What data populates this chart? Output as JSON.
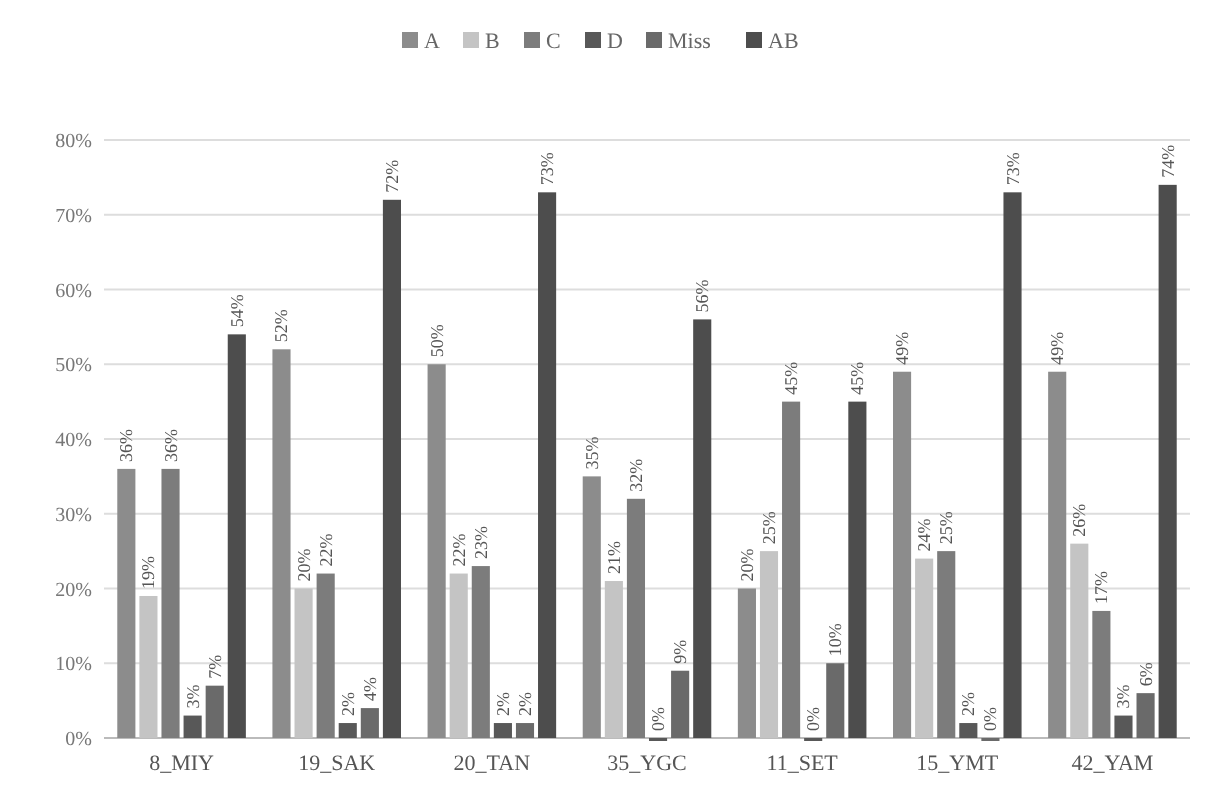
{
  "chart_data": {
    "type": "bar",
    "categories": [
      "8_MIY",
      "19_SAK",
      "20_TAN",
      "35_YGC",
      "11_SET",
      "15_YMT",
      "42_YAM"
    ],
    "series": [
      {
        "name": "A",
        "color": "#8c8c8c",
        "values": [
          36,
          52,
          50,
          35,
          20,
          49,
          49
        ],
        "value_labels": [
          "36%",
          "52%",
          "50%",
          "35%",
          "20%",
          "49%",
          "49%"
        ]
      },
      {
        "name": "B",
        "color": "#c4c4c4",
        "values": [
          19,
          20,
          22,
          21,
          25,
          24,
          26
        ],
        "value_labels": [
          "19%",
          "20%",
          "22%",
          "21%",
          "25%",
          "24%",
          "26%"
        ]
      },
      {
        "name": "C",
        "color": "#7c7c7c",
        "values": [
          36,
          22,
          23,
          32,
          45,
          25,
          17
        ],
        "value_labels": [
          "36%",
          "22%",
          "23%",
          "32%",
          "45%",
          "25%",
          "17%"
        ]
      },
      {
        "name": "D",
        "color": "#585858",
        "values": [
          3,
          2,
          2,
          0,
          0,
          2,
          3
        ],
        "value_labels": [
          "3%",
          "2%",
          "2%",
          "0%",
          "0%",
          "2%",
          "3%"
        ]
      },
      {
        "name": "Miss",
        "color": "#6a6a6a",
        "values": [
          7,
          4,
          2,
          9,
          10,
          0,
          6
        ],
        "value_labels": [
          "7%",
          "4%",
          "2%",
          "9%",
          "10%",
          "0%",
          "6%"
        ]
      },
      {
        "name": "AB",
        "color": "#4d4d4d",
        "values": [
          54,
          72,
          73,
          56,
          45,
          73,
          74
        ],
        "value_labels": [
          "54%",
          "72%",
          "73%",
          "56%",
          "45%",
          "73%",
          "74%"
        ]
      }
    ],
    "ylim": [
      0,
      80
    ],
    "yticks": [
      {
        "value": 0,
        "label": "0%"
      },
      {
        "value": 10,
        "label": "10%"
      },
      {
        "value": 20,
        "label": "20%"
      },
      {
        "value": 30,
        "label": "30%"
      },
      {
        "value": 40,
        "label": "40%"
      },
      {
        "value": 50,
        "label": "50%"
      },
      {
        "value": 60,
        "label": "60%"
      },
      {
        "value": 70,
        "label": "70%"
      },
      {
        "value": 80,
        "label": "80%"
      }
    ],
    "grid": "y",
    "legend": "top"
  }
}
